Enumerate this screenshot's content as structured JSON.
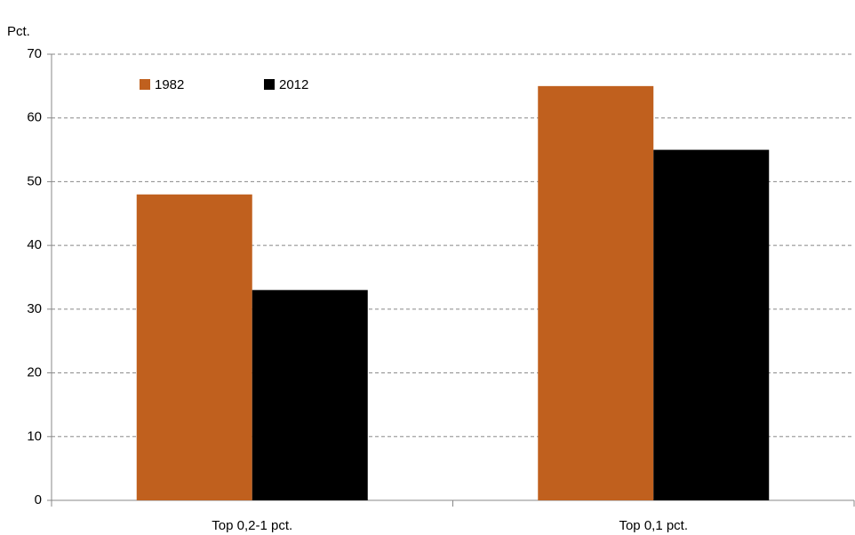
{
  "chart_data": {
    "type": "bar",
    "y_label": "Pct.",
    "categories": [
      "Top 0,2-1 pct.",
      "Top 0,1 pct."
    ],
    "series": [
      {
        "name": "1982",
        "color": "#c0601e",
        "values": [
          48,
          65
        ]
      },
      {
        "name": "2012",
        "color": "#000000",
        "values": [
          33,
          55
        ]
      }
    ],
    "ylim": [
      0,
      70
    ],
    "yticks": [
      0,
      10,
      20,
      30,
      40,
      50,
      60,
      70
    ],
    "grid": true,
    "legend": "top-left"
  }
}
